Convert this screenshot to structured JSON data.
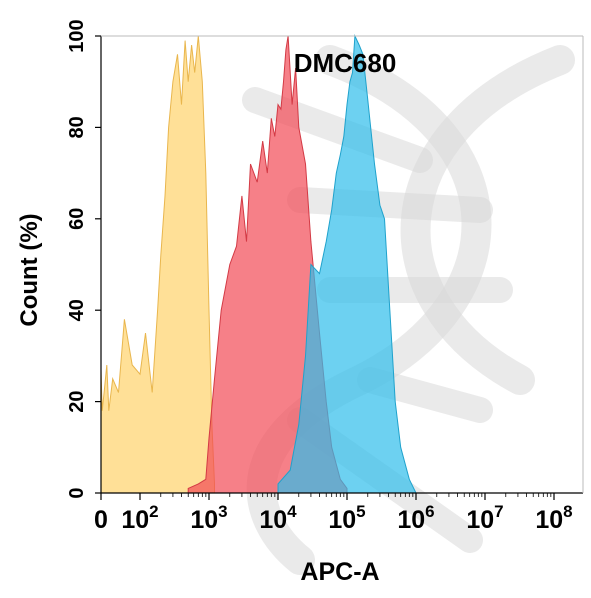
{
  "chart_data": {
    "type": "area",
    "title": "DMC680",
    "xlabel": "APC-A",
    "ylabel": "Count  (%)",
    "x_scale": "biexponential (0 then log10 decades)",
    "xlim": [
      0,
      100000000
    ],
    "ylim": [
      0,
      100
    ],
    "grid": false,
    "legend": "none",
    "y_ticks": [
      "0",
      "20",
      "40",
      "60",
      "80",
      "100"
    ],
    "x_ticks": [
      {
        "base": "0",
        "exp": ""
      },
      {
        "base": "10",
        "exp": "2"
      },
      {
        "base": "10",
        "exp": "3"
      },
      {
        "base": "10",
        "exp": "4"
      },
      {
        "base": "10",
        "exp": "5"
      },
      {
        "base": "10",
        "exp": "6"
      },
      {
        "base": "10",
        "exp": "7"
      },
      {
        "base": "10",
        "exp": "8"
      }
    ],
    "colors": {
      "series_1": "#FFD36B",
      "series_2": "#F24A55",
      "series_3": "#2FBDEB",
      "watermark": "#d9d9d9"
    },
    "series": [
      {
        "x": [
          0,
          3,
          8,
          15,
          20,
          30,
          45,
          60,
          80,
          100,
          120,
          150,
          180,
          200,
          230,
          260,
          300,
          350,
          400,
          450,
          500,
          560,
          620,
          700,
          800,
          900,
          1000,
          1100,
          1200
        ],
        "y": [
          27,
          18,
          22,
          28,
          18,
          25,
          22,
          38,
          28,
          26,
          35,
          22,
          40,
          52,
          65,
          80,
          90,
          96,
          85,
          99,
          90,
          98,
          92,
          100,
          90,
          70,
          40,
          15,
          2
        ]
      },
      {
        "x": [
          500,
          700,
          900,
          1000,
          1200,
          1500,
          2000,
          2500,
          3000,
          3500,
          4000,
          5000,
          6000,
          7000,
          8000,
          9000,
          10000,
          11000,
          12000,
          13000,
          14000,
          16000,
          18000,
          20000,
          25000,
          30000,
          40000,
          50000,
          60000,
          80000,
          100000
        ],
        "y": [
          1,
          2,
          3,
          12,
          25,
          40,
          50,
          54,
          65,
          55,
          72,
          68,
          77,
          70,
          82,
          78,
          85,
          84,
          90,
          97,
          100,
          85,
          93,
          80,
          72,
          55,
          35,
          20,
          10,
          3,
          1
        ]
      },
      {
        "x": [
          10000,
          15000,
          20000,
          25000,
          30000,
          40000,
          50000,
          60000,
          70000,
          80000,
          90000,
          100000,
          110000,
          120000,
          130000,
          150000,
          170000,
          200000,
          250000,
          300000,
          350000,
          400000,
          500000,
          600000,
          800000,
          1000000
        ],
        "y": [
          2,
          5,
          15,
          30,
          50,
          48,
          55,
          62,
          70,
          74,
          78,
          85,
          90,
          92,
          100,
          98,
          96,
          86,
          72,
          63,
          60,
          45,
          20,
          10,
          3,
          0
        ]
      }
    ]
  }
}
